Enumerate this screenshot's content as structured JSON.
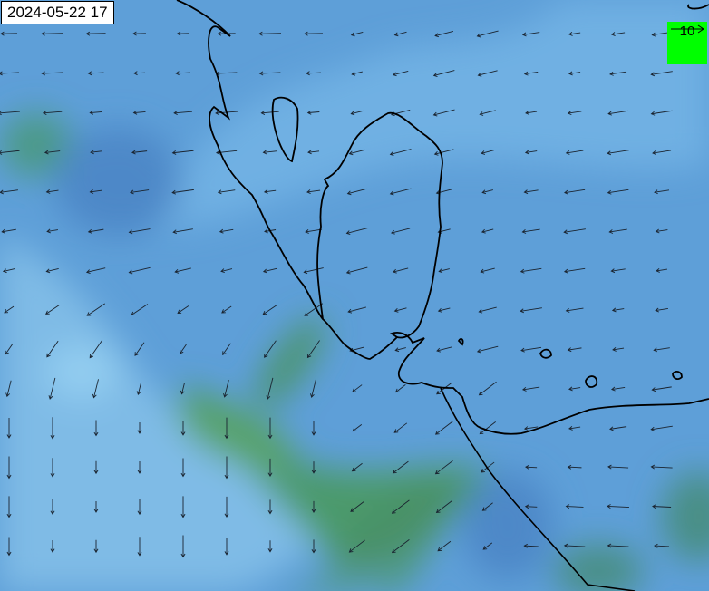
{
  "timestamp": "2024-05-22 17",
  "legend": {
    "value": "10",
    "arrow_direction": "east"
  },
  "colors": {
    "field_light": "#7db9e6",
    "field_mid": "#5b9ed8",
    "field_dark": "#4a86c8",
    "field_green": "#4e9c60",
    "coastline": "#000000",
    "legend_bg": "#00ff00"
  }
}
